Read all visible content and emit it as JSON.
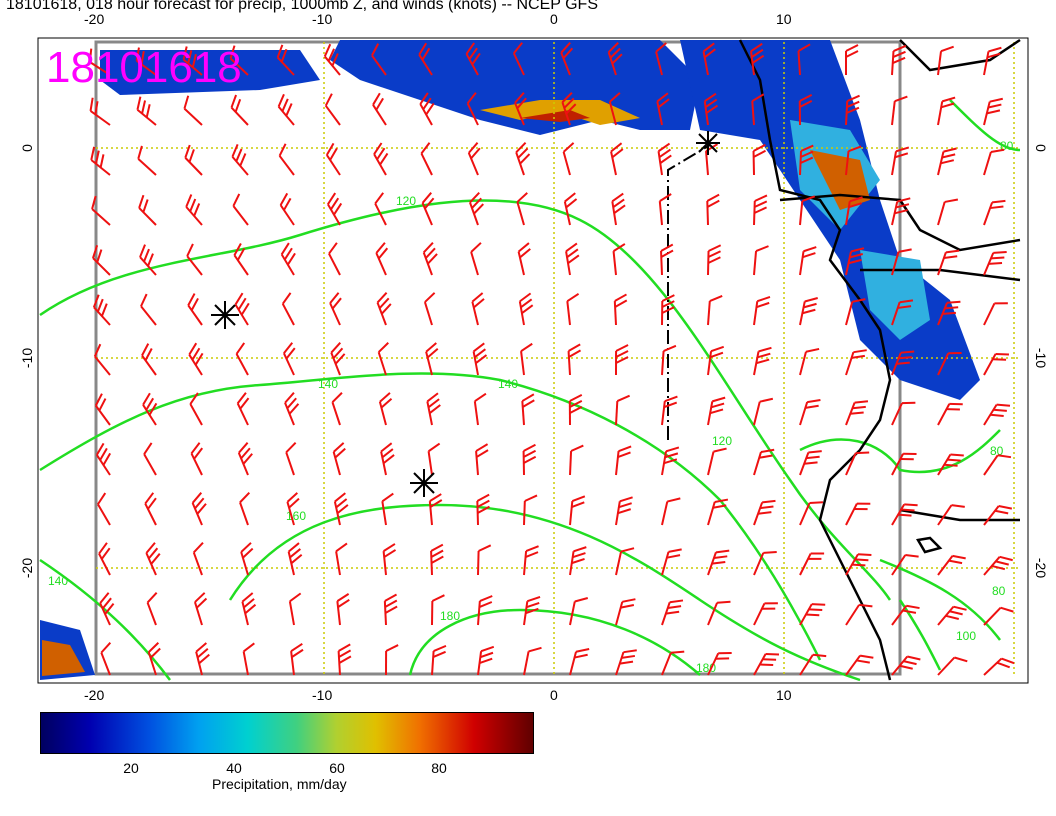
{
  "title": "18101618, 018 hour forecast for precip, 1000mb Z, and winds (knots) -- NCEP GFS",
  "stamp": "18101618",
  "axes": {
    "x_ticks": [
      "-20",
      "-10",
      "0",
      "10"
    ],
    "y_ticks": [
      "0",
      "-10",
      "-20"
    ]
  },
  "contour_labels": [
    "80",
    "100",
    "120",
    "140",
    "160",
    "180"
  ],
  "colorbar": {
    "label": "Precipitation, mm/day",
    "ticks": [
      "20",
      "40",
      "60",
      "80"
    ]
  },
  "colors": {
    "contour": "#22dd22",
    "wind_barb": "#ee1111",
    "coast": "#000000",
    "grid": "#cccc00",
    "stamp": "#ff00ff",
    "frame": "#888888"
  }
}
